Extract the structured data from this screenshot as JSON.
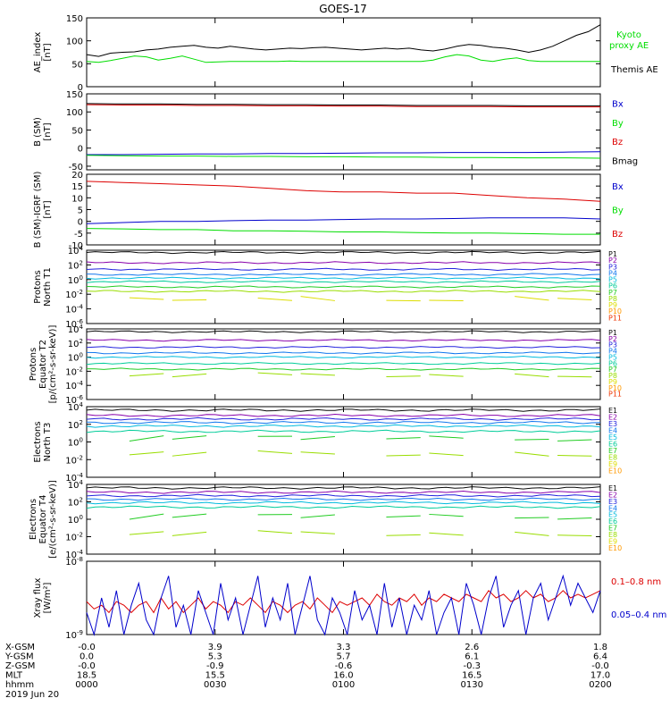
{
  "title": "GOES-17",
  "colors": {
    "black": "#000000",
    "green": "#00dd00",
    "blue": "#0000cc",
    "red": "#dd0000",
    "ch": [
      "#0a0a0a",
      "#8800aa",
      "#2222dd",
      "#1177ee",
      "#00bbdd",
      "#00cc99",
      "#22cc22",
      "#99dd00",
      "#dddd00",
      "#ff9900",
      "#ee3300",
      "#cc0000"
    ]
  },
  "chart_data": [
    {
      "type": "line",
      "ylabel": "AE_index\n[nT]",
      "ylim": [
        0,
        150
      ],
      "yticks": [
        "0",
        "50",
        "100",
        "150"
      ],
      "legend": [
        "Kyoto\nproxy AE",
        "Themis AE"
      ],
      "series": [
        {
          "name": "Kyoto proxy AE",
          "color": "#000000",
          "values": [
            70,
            66,
            73,
            75,
            76,
            80,
            82,
            86,
            88,
            90,
            86,
            84,
            88,
            85,
            82,
            80,
            82,
            84,
            83,
            85,
            86,
            84,
            82,
            80,
            82,
            84,
            82,
            84,
            80,
            78,
            82,
            88,
            92,
            90,
            86,
            84,
            80,
            75,
            80,
            88,
            100,
            112,
            120,
            135
          ]
        },
        {
          "name": "Themis AE",
          "color": "#00dd00",
          "values": [
            55,
            53,
            57,
            62,
            67,
            65,
            58,
            62,
            67,
            60,
            53,
            54,
            55,
            55,
            55,
            55,
            55,
            56,
            55,
            55,
            55,
            55,
            55,
            55,
            55,
            55,
            55,
            55,
            55,
            58,
            65,
            70,
            67,
            58,
            55,
            60,
            63,
            57,
            55,
            55,
            55,
            55,
            55,
            55
          ]
        }
      ]
    },
    {
      "type": "line",
      "ylabel": "B (SM)\n[nT]",
      "ylim": [
        -60,
        150
      ],
      "yticks": [
        "-50",
        "0",
        "50",
        "100",
        "150"
      ],
      "legend": [
        "Bx",
        "By",
        "Bz",
        "Bmag"
      ],
      "series": [
        {
          "name": "Bx",
          "color": "#0000cc",
          "values": [
            -18,
            -18,
            -17,
            -16,
            -16,
            -15,
            -15,
            -14,
            -13,
            -13,
            -12,
            -12,
            -12,
            -11,
            -10
          ]
        },
        {
          "name": "By",
          "color": "#00dd00",
          "values": [
            -20,
            -21,
            -22,
            -22,
            -23,
            -23,
            -24,
            -24,
            -25,
            -25,
            -26,
            -26,
            -27,
            -27,
            -28
          ]
        },
        {
          "name": "Bz",
          "color": "#dd0000",
          "values": [
            120,
            119,
            119,
            118,
            118,
            117,
            117,
            116,
            116,
            115,
            115,
            115,
            114,
            114,
            114
          ]
        },
        {
          "name": "Bmag",
          "color": "#000000",
          "values": [
            123,
            122,
            122,
            121,
            121,
            120,
            120,
            119,
            119,
            118,
            118,
            118,
            117,
            117,
            117
          ]
        }
      ]
    },
    {
      "type": "line",
      "ylabel": "B (SM)-IGRF (SM)\n[nT]",
      "ylim": [
        -10,
        20
      ],
      "yticks": [
        "-10",
        "-5",
        "0",
        "5",
        "10",
        "15",
        "20"
      ],
      "legend": [
        "Bx",
        "By",
        "Bz"
      ],
      "series": [
        {
          "name": "Bx",
          "color": "#0000cc",
          "values": [
            -1,
            -0.5,
            0,
            0,
            0.3,
            0.5,
            0.5,
            0.8,
            1,
            1,
            1.2,
            1.5,
            1.5,
            1.5,
            1
          ]
        },
        {
          "name": "By",
          "color": "#00dd00",
          "values": [
            -3,
            -3.2,
            -3.5,
            -3.5,
            -4,
            -4,
            -4.2,
            -4.5,
            -4.5,
            -4.8,
            -5,
            -5,
            -5.2,
            -5.5,
            -5.5
          ]
        },
        {
          "name": "Bz",
          "color": "#dd0000",
          "values": [
            17,
            16.5,
            16,
            15.5,
            15,
            14,
            13,
            12.5,
            12.5,
            12,
            12,
            11,
            10,
            9.5,
            8.5
          ]
        }
      ]
    },
    {
      "type": "line",
      "ylabel": "Protons\nNorth T1",
      "log": true,
      "ylim": [
        -6,
        4
      ],
      "yticks": [
        "10^4",
        "10^2",
        "10^0",
        "10^-2",
        "10^-4",
        "10^-6"
      ],
      "legend": [
        "P1",
        "P2",
        "P3",
        "P4",
        "P5",
        "P6",
        "P7",
        "P8",
        "P9",
        "P10",
        "P11"
      ],
      "levels": [
        3.7,
        2.3,
        1.4,
        0.7,
        0.2,
        -0.3,
        -1.0,
        -1.6,
        -2.6
      ]
    },
    {
      "type": "line",
      "ylabel": "Protons\nEquator T2\n[p/(cm²-s-sr-keV)]",
      "log": true,
      "ylim": [
        -6,
        4
      ],
      "yticks": [
        "10^4",
        "10^2",
        "10^0",
        "10^-2",
        "10^-4",
        "10^-6"
      ],
      "legend": [
        "P1",
        "P2",
        "P3",
        "P4",
        "P5",
        "P6",
        "P7",
        "P8",
        "P9",
        "P10",
        "P11"
      ],
      "levels": [
        3.6,
        2.4,
        1.4,
        0.6,
        0.0,
        -0.9,
        -1.7,
        -2.5
      ]
    },
    {
      "type": "line",
      "ylabel": "Electrons\nNorth T3",
      "log": true,
      "ylim": [
        -4,
        4
      ],
      "yticks": [
        "10^4",
        "10^2",
        "10^0",
        "10^-2",
        "10^-4"
      ],
      "legend": [
        "E1",
        "E2",
        "E3",
        "E4",
        "E5",
        "E6",
        "E7",
        "E8",
        "E9",
        "E10"
      ],
      "levels": [
        3.6,
        3.0,
        2.6,
        2.2,
        1.8,
        1.2,
        0.4,
        -1.3
      ]
    },
    {
      "type": "line",
      "ylabel": "Electrons\nEquator T4\n[e/(cm²-s-sr-keV)]",
      "log": true,
      "ylim": [
        -4,
        4
      ],
      "yticks": [
        "10^4",
        "10^2",
        "10^0",
        "10^-2",
        "10^-4"
      ],
      "legend": [
        "E1",
        "E2",
        "E3",
        "E4",
        "E5",
        "E6",
        "E7",
        "E8",
        "E9",
        "E10"
      ],
      "levels": [
        3.6,
        3.1,
        2.7,
        2.3,
        1.9,
        1.4,
        0.3,
        -1.6
      ]
    },
    {
      "type": "line",
      "ylabel": "Xray flux\n[W/m²]",
      "log": true,
      "ylim": [
        -9,
        -8
      ],
      "yticks": [
        "10^-8",
        "10^-9"
      ],
      "legend": [
        "0.1–0.8 nm",
        "0.05–0.4 nm"
      ],
      "series": [
        {
          "name": "0.1-0.8 nm",
          "color": "#dd0000",
          "values": [
            -8.55,
            -8.65,
            -8.6,
            -8.7,
            -8.55,
            -8.6,
            -8.7,
            -8.6,
            -8.55,
            -8.7,
            -8.5,
            -8.65,
            -8.55,
            -8.7,
            -8.6,
            -8.5,
            -8.65,
            -8.55,
            -8.6,
            -8.7,
            -8.55,
            -8.6,
            -8.5,
            -8.6,
            -8.7,
            -8.55,
            -8.6,
            -8.7,
            -8.6,
            -8.55,
            -8.65,
            -8.5,
            -8.6,
            -8.7,
            -8.55,
            -8.6,
            -8.55,
            -8.5,
            -8.6,
            -8.45,
            -8.55,
            -8.6,
            -8.5,
            -8.55,
            -8.45,
            -8.6,
            -8.5,
            -8.55,
            -8.45,
            -8.5,
            -8.55,
            -8.45,
            -8.5,
            -8.55,
            -8.4,
            -8.5,
            -8.45,
            -8.55,
            -8.5,
            -8.4,
            -8.5,
            -8.45,
            -8.55,
            -8.5,
            -8.4,
            -8.5,
            -8.45,
            -8.5,
            -8.45,
            -8.4
          ]
        },
        {
          "name": "0.05-0.4 nm",
          "color": "#0000cc",
          "values": [
            -8.7,
            -9,
            -8.5,
            -8.9,
            -8.4,
            -9,
            -8.6,
            -8.3,
            -8.8,
            -9,
            -8.5,
            -8.2,
            -8.9,
            -8.6,
            -9,
            -8.4,
            -8.7,
            -9,
            -8.3,
            -8.8,
            -8.5,
            -9,
            -8.6,
            -8.2,
            -8.9,
            -8.5,
            -8.8,
            -8.3,
            -9,
            -8.6,
            -8.2,
            -8.8,
            -9,
            -8.5,
            -8.7,
            -9,
            -8.4,
            -8.8,
            -8.6,
            -9,
            -8.3,
            -8.9,
            -8.5,
            -9,
            -8.6,
            -8.8,
            -8.4,
            -9,
            -8.7,
            -8.5,
            -9,
            -8.3,
            -8.6,
            -9,
            -8.5,
            -8.2,
            -8.9,
            -8.6,
            -8.4,
            -9,
            -8.5,
            -8.3,
            -8.8,
            -8.5,
            -8.2,
            -8.6,
            -8.3,
            -8.5,
            -8.7,
            -8.4
          ]
        }
      ]
    }
  ],
  "x_axis": {
    "row_labels": [
      "X-GSM",
      "Y-GSM",
      "Z-GSM",
      "MLT",
      "hhmm"
    ],
    "date": "2019 Jun 20",
    "ticks": [
      [
        "-0.0",
        "0.0",
        "-0.0",
        "18.5",
        "0000"
      ],
      [
        "3.9",
        "5.3",
        "-0.9",
        "15.5",
        "0030"
      ],
      [
        "3.3",
        "5.7",
        "-0.6",
        "16.0",
        "0100"
      ],
      [
        "2.6",
        "6.1",
        "-0.3",
        "16.5",
        "0130"
      ],
      [
        "1.8",
        "6.4",
        "-0.0",
        "17.0",
        "0200"
      ]
    ]
  }
}
